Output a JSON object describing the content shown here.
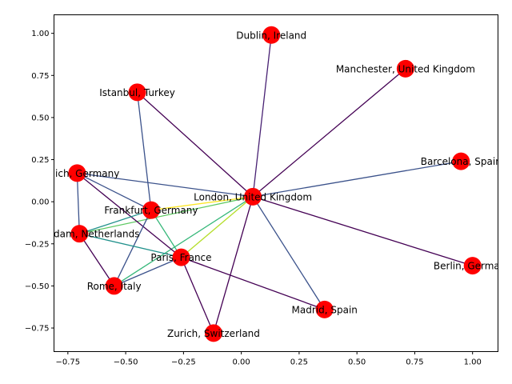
{
  "chart_data": {
    "type": "network",
    "grid": false,
    "xlim": [
      -0.81,
      1.11
    ],
    "ylim": [
      -0.89,
      1.11
    ],
    "x_ticks": [
      {
        "value": -0.75,
        "label": "−0.75"
      },
      {
        "value": -0.5,
        "label": "−0.50"
      },
      {
        "value": -0.25,
        "label": "−0.25"
      },
      {
        "value": 0.0,
        "label": "0.00"
      },
      {
        "value": 0.25,
        "label": "0.25"
      },
      {
        "value": 0.5,
        "label": "0.50"
      },
      {
        "value": 0.75,
        "label": "0.75"
      },
      {
        "value": 1.0,
        "label": "1.00"
      }
    ],
    "y_ticks": [
      {
        "value": -0.75,
        "label": "−0.75"
      },
      {
        "value": -0.5,
        "label": "−0.50"
      },
      {
        "value": -0.25,
        "label": "−0.25"
      },
      {
        "value": 0.0,
        "label": "0.00"
      },
      {
        "value": 0.25,
        "label": "0.25"
      },
      {
        "value": 0.5,
        "label": "0.50"
      },
      {
        "value": 0.75,
        "label": "0.75"
      },
      {
        "value": 1.0,
        "label": "1.00"
      }
    ],
    "node_color": "#ff0000",
    "nodes": [
      {
        "id": "london",
        "label": "London, United Kingdom",
        "x": 0.05,
        "y": 0.03
      },
      {
        "id": "dublin",
        "label": "Dublin, Ireland",
        "x": 0.13,
        "y": 0.99
      },
      {
        "id": "manchester",
        "label": "Manchester, United Kingdom",
        "x": 0.71,
        "y": 0.79
      },
      {
        "id": "istanbul",
        "label": "Istanbul, Turkey",
        "x": -0.45,
        "y": 0.65
      },
      {
        "id": "barcelona",
        "label": "Barcelona, Spain",
        "x": 0.95,
        "y": 0.24
      },
      {
        "id": "munich",
        "label": "Munich, Germany",
        "x": -0.71,
        "y": 0.17
      },
      {
        "id": "frankfurt",
        "label": "Frankfurt, Germany",
        "x": -0.39,
        "y": -0.05
      },
      {
        "id": "amsterdam",
        "label": "Amsterdam, Netherlands",
        "x": -0.7,
        "y": -0.19
      },
      {
        "id": "paris",
        "label": "Paris, France",
        "x": -0.26,
        "y": -0.33
      },
      {
        "id": "rome",
        "label": "Rome, Italy",
        "x": -0.55,
        "y": -0.5
      },
      {
        "id": "berlin",
        "label": "Berlin, Germany",
        "x": 1.0,
        "y": -0.38
      },
      {
        "id": "madrid",
        "label": "Madrid, Spain",
        "x": 0.36,
        "y": -0.64
      },
      {
        "id": "zurich",
        "label": "Zurich, Switzerland",
        "x": -0.12,
        "y": -0.78
      }
    ],
    "edges": [
      {
        "source": "london",
        "target": "dublin",
        "color": "#482173"
      },
      {
        "source": "london",
        "target": "manchester",
        "color": "#440154"
      },
      {
        "source": "london",
        "target": "istanbul",
        "color": "#440154"
      },
      {
        "source": "london",
        "target": "barcelona",
        "color": "#3b528b"
      },
      {
        "source": "london",
        "target": "munich",
        "color": "#3b528b"
      },
      {
        "source": "london",
        "target": "frankfurt",
        "color": "#fde725"
      },
      {
        "source": "london",
        "target": "amsterdam",
        "color": "#5ec962"
      },
      {
        "source": "london",
        "target": "paris",
        "color": "#b5de2b"
      },
      {
        "source": "london",
        "target": "rome",
        "color": "#35b779"
      },
      {
        "source": "london",
        "target": "berlin",
        "color": "#440154"
      },
      {
        "source": "london",
        "target": "madrid",
        "color": "#3b528b"
      },
      {
        "source": "london",
        "target": "zurich",
        "color": "#440154"
      },
      {
        "source": "istanbul",
        "target": "frankfurt",
        "color": "#3b528b"
      },
      {
        "source": "munich",
        "target": "frankfurt",
        "color": "#3b528b"
      },
      {
        "source": "munich",
        "target": "amsterdam",
        "color": "#3b528b"
      },
      {
        "source": "munich",
        "target": "paris",
        "color": "#440154"
      },
      {
        "source": "frankfurt",
        "target": "amsterdam",
        "color": "#21918c"
      },
      {
        "source": "frankfurt",
        "target": "paris",
        "color": "#35b779"
      },
      {
        "source": "frankfurt",
        "target": "rome",
        "color": "#3b528b"
      },
      {
        "source": "amsterdam",
        "target": "paris",
        "color": "#21918c"
      },
      {
        "source": "amsterdam",
        "target": "rome",
        "color": "#440154"
      },
      {
        "source": "paris",
        "target": "rome",
        "color": "#3b528b"
      },
      {
        "source": "paris",
        "target": "madrid",
        "color": "#440154"
      },
      {
        "source": "paris",
        "target": "zurich",
        "color": "#440154"
      }
    ]
  }
}
